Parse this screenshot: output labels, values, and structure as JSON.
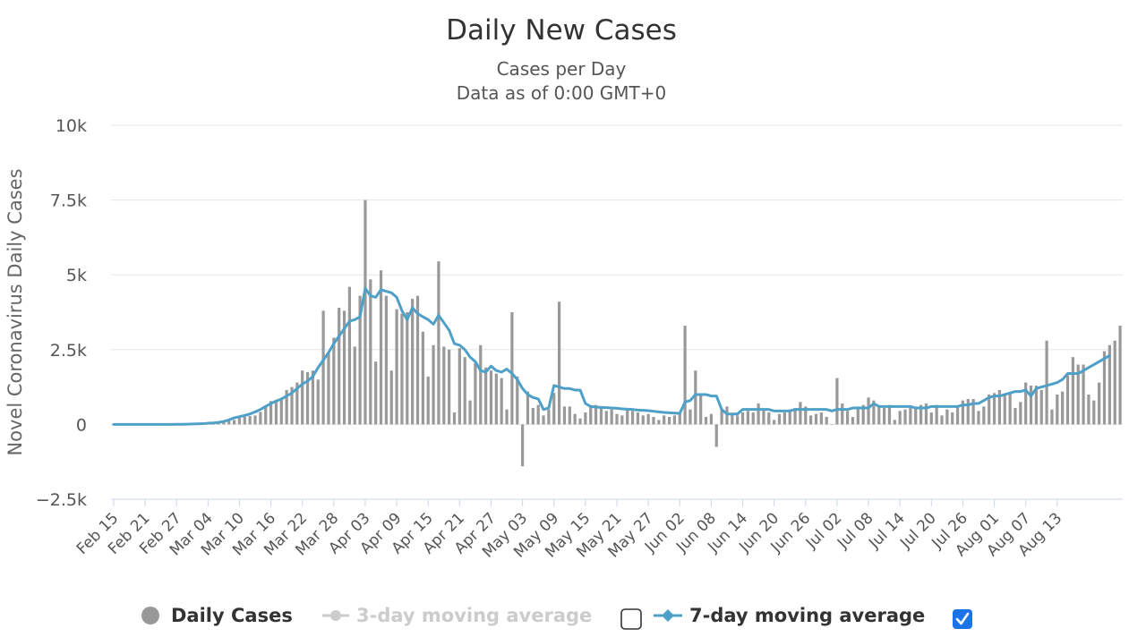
{
  "chart_data": {
    "type": "bar",
    "title": "Daily New Cases",
    "subtitle_lines": [
      "Cases per Day",
      "Data as of 0:00 GMT+0"
    ],
    "ylabel": "Novel Coronavirus Daily Cases",
    "xlabel": "",
    "ylim": [
      -2500,
      10000
    ],
    "yticks": [
      -2500,
      0,
      2500,
      5000,
      7500,
      10000
    ],
    "ytick_labels": [
      "−2.5k",
      "0",
      "2.5k",
      "5k",
      "7.5k",
      "10k"
    ],
    "x_start": "2020-02-15",
    "xtick_labels": [
      "Feb 15",
      "Feb 21",
      "Feb 27",
      "Mar 04",
      "Mar 10",
      "Mar 16",
      "Mar 22",
      "Mar 28",
      "Apr 03",
      "Apr 09",
      "Apr 15",
      "Apr 21",
      "Apr 27",
      "May 03",
      "May 09",
      "May 15",
      "May 21",
      "May 27",
      "Jun 02",
      "Jun 08",
      "Jun 14",
      "Jun 20",
      "Jun 26",
      "Jul 02",
      "Jul 08",
      "Jul 14",
      "Jul 20",
      "Jul 26",
      "Aug 01",
      "Aug 07",
      "Aug 13"
    ],
    "grid": true,
    "legend_position": "bottom",
    "series": [
      {
        "name": "Daily Cases",
        "type": "bar",
        "color": "#999999",
        "values": [
          0,
          0,
          0,
          0,
          0,
          0,
          0,
          0,
          0,
          0,
          0,
          0,
          5,
          5,
          10,
          10,
          15,
          20,
          30,
          40,
          60,
          80,
          120,
          150,
          220,
          250,
          280,
          300,
          420,
          580,
          780,
          820,
          870,
          1150,
          1250,
          1400,
          1800,
          1750,
          1800,
          1500,
          3800,
          2400,
          2900,
          3900,
          3800,
          4600,
          2600,
          4300,
          7500,
          4850,
          2100,
          5150,
          4300,
          1800,
          3850,
          3700,
          3750,
          4200,
          4300,
          3100,
          1600,
          2650,
          5450,
          2600,
          2500,
          400,
          2550,
          2250,
          800,
          2050,
          2650,
          1900,
          1800,
          1700,
          1550,
          500,
          3750,
          1600,
          -1400,
          1100,
          550,
          650,
          300,
          500,
          1050,
          4100,
          600,
          600,
          350,
          200,
          400,
          600,
          650,
          550,
          450,
          500,
          350,
          300,
          500,
          450,
          400,
          300,
          350,
          250,
          150,
          300,
          250,
          300,
          350,
          3300,
          500,
          1800,
          1000,
          250,
          350,
          -750,
          500,
          600,
          350,
          300,
          400,
          450,
          400,
          700,
          500,
          400,
          150,
          350,
          400,
          500,
          550,
          750,
          600,
          300,
          350,
          400,
          250,
          0,
          1550,
          700,
          450,
          250,
          600,
          650,
          900,
          800,
          600,
          550,
          650,
          150,
          450,
          500,
          600,
          550,
          650,
          700,
          400,
          650,
          300,
          500,
          400,
          600,
          800,
          850,
          850,
          450,
          600,
          1000,
          1050,
          1150,
          1000,
          1050,
          550,
          750,
          1400,
          1300,
          1300,
          1150,
          2800,
          500,
          1000,
          1100,
          1650,
          2250,
          2000,
          2000,
          1000,
          800,
          1400,
          2450,
          2650,
          2800,
          3300
        ]
      },
      {
        "name": "3-day moving average",
        "type": "line",
        "color": "#cccccc",
        "visible": false
      },
      {
        "name": "7-day moving average",
        "type": "line",
        "color": "#4ea0c8",
        "values": [
          0,
          0,
          0,
          0,
          0,
          0,
          0,
          0,
          0,
          0,
          0,
          0,
          5,
          5,
          10,
          15,
          20,
          25,
          40,
          50,
          70,
          100,
          150,
          220,
          260,
          300,
          350,
          420,
          500,
          600,
          700,
          780,
          850,
          950,
          1050,
          1200,
          1350,
          1450,
          1600,
          1900,
          2150,
          2400,
          2700,
          2950,
          3200,
          3450,
          3500,
          3600,
          4550,
          4300,
          4250,
          4500,
          4450,
          4400,
          4250,
          3800,
          3500,
          3900,
          3700,
          3600,
          3500,
          3350,
          3650,
          3400,
          3150,
          2700,
          2650,
          2500,
          2250,
          2100,
          1800,
          1750,
          1950,
          1800,
          1750,
          1850,
          1700,
          1500,
          1200,
          1000,
          900,
          850,
          500,
          550,
          1300,
          1250,
          1200,
          1200,
          1150,
          1150,
          700,
          600,
          580,
          570,
          560,
          550,
          540,
          520,
          510,
          500,
          480,
          470,
          460,
          440,
          420,
          400,
          390,
          380,
          370,
          750,
          800,
          1000,
          1000,
          1000,
          950,
          950,
          500,
          350,
          350,
          350,
          500,
          500,
          500,
          500,
          500,
          500,
          450,
          450,
          450,
          450,
          500,
          500,
          500,
          500,
          500,
          500,
          500,
          450,
          500,
          500,
          500,
          550,
          550,
          550,
          550,
          700,
          600,
          600,
          600,
          600,
          600,
          600,
          600,
          550,
          550,
          550,
          600,
          600,
          600,
          600,
          600,
          600,
          650,
          650,
          700,
          700,
          800,
          900,
          950,
          950,
          1000,
          1050,
          1100,
          1100,
          1150,
          950,
          1200,
          1250,
          1300,
          1350,
          1400,
          1500,
          1700,
          1700,
          1700,
          1800,
          1900,
          2000,
          2100,
          2200,
          2300
        ]
      }
    ]
  },
  "legend": {
    "items": [
      {
        "label": "Daily Cases",
        "color": "#999999",
        "active": true
      },
      {
        "label": "3-day moving average",
        "color": "#cccccc",
        "active": false
      },
      {
        "label": "7-day moving average",
        "color": "#4ea0c8",
        "active": true
      }
    ],
    "checkbox_3day_checked": false,
    "checkbox_7day_checked": true,
    "checkbox_color": "#1a73e8"
  }
}
